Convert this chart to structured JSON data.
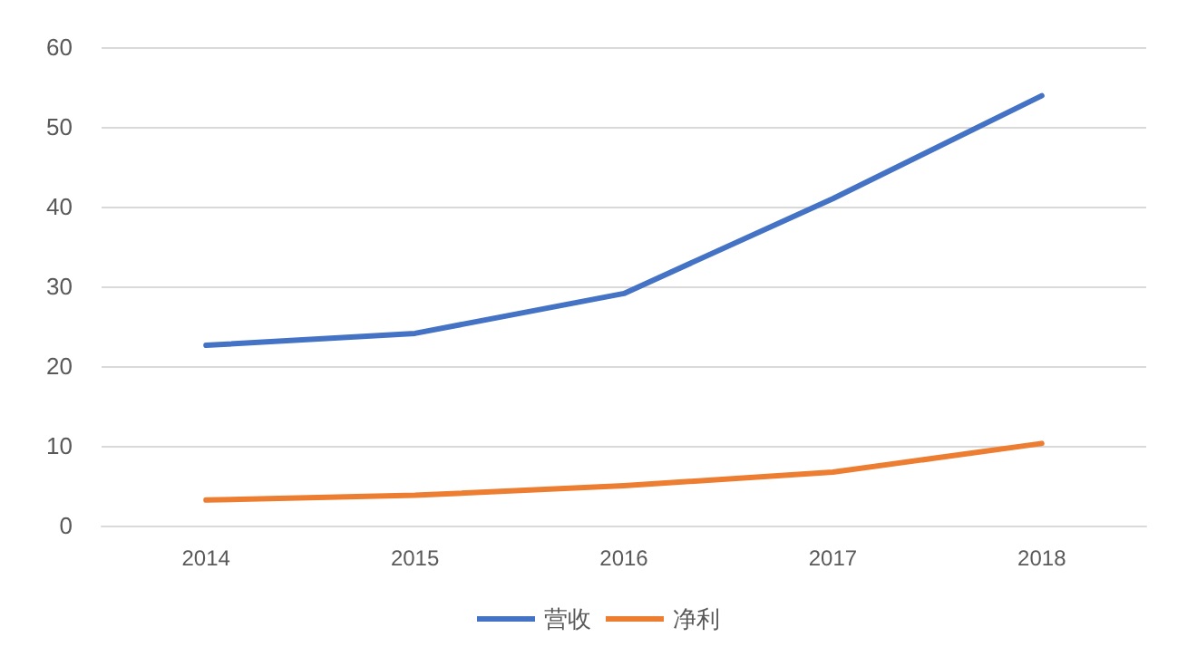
{
  "chart_data": {
    "type": "line",
    "categories": [
      "2014",
      "2015",
      "2016",
      "2017",
      "2018"
    ],
    "series": [
      {
        "name": "营收",
        "color": "#4472c4",
        "values": [
          22.6,
          24.1,
          29.1,
          41.0,
          53.9
        ]
      },
      {
        "name": "净利",
        "color": "#ed7d31",
        "values": [
          3.2,
          3.8,
          5.0,
          6.7,
          10.3
        ]
      }
    ],
    "ylim": [
      0,
      60
    ],
    "yticks": [
      0,
      10,
      20,
      30,
      40,
      50,
      60
    ],
    "grid": "y",
    "legend": "bottom",
    "marker": "none",
    "line_style": "solid"
  }
}
